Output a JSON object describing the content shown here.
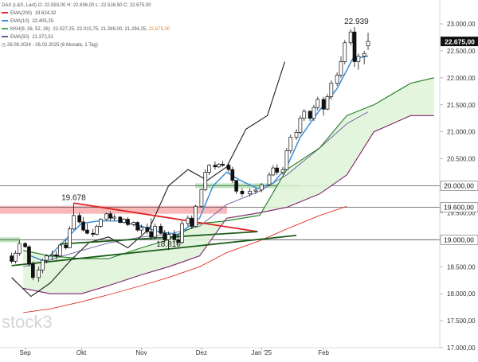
{
  "chart_data": {
    "type": "candlestick",
    "instrument": "DAX (L&S, Last)",
    "header": {
      "open": "22.593,00",
      "high": "22.836,00",
      "low": "22.516,50",
      "close": "22.675,00"
    },
    "period_label": "26.08.2024 - 26.02.2025 (6 Monate, 1 Tag)",
    "watermark": "stock3",
    "current_price_label": "22.675,00",
    "indicators": [
      {
        "name": "EMA(200)",
        "value": "19.624,32",
        "color": "#e0302a"
      },
      {
        "name": "EMA(10)",
        "value": "22.405,25",
        "color": "#3a8fd8"
      },
      {
        "name": "KKH(9, 26, 52, 26)",
        "values": [
          "22.527,25",
          "22.010,75",
          "21.269,00",
          "21.294,25",
          "22.675,00"
        ],
        "color": "#4cae4c"
      },
      {
        "name": "EMA(50)",
        "value": "21.372,51",
        "color": "#6a5aa0"
      }
    ],
    "y_axis": {
      "min": 17000,
      "max": 23000,
      "ticks": [
        17000,
        17500,
        18000,
        18500,
        19000,
        19500,
        20000,
        20500,
        21000,
        21500,
        22000,
        22500,
        23000
      ],
      "tick_labels": [
        "17.000,00",
        "17.500,00",
        "18.000,00",
        "18.500,00",
        "19.000,00",
        "19.500,00",
        "20.000,00",
        "20.500,00",
        "21.000,00",
        "21.500,00",
        "22.000,00",
        "22.500,00",
        "23.000,00"
      ]
    },
    "x_axis": {
      "labels": [
        {
          "label": "Sep",
          "date": "2024-09-02"
        },
        {
          "label": "Okt",
          "date": "2024-10-01"
        },
        {
          "label": "Nov",
          "date": "2024-11-01"
        },
        {
          "label": "Dez",
          "date": "2024-12-02"
        },
        {
          "label": "Jan '25",
          "date": "2025-01-02"
        },
        {
          "label": "Feb",
          "date": "2025-02-03"
        }
      ]
    },
    "horizontal_levels": [
      {
        "value": 20000,
        "label": "20.000,00",
        "zone_color": "#7fd27f"
      },
      {
        "value": 19600,
        "label": "19.600,00",
        "zone_color": "#f08080"
      },
      {
        "value": 19000,
        "label": "19.000,00",
        "zone_color": "#7fd27f"
      }
    ],
    "annotations": [
      {
        "text": "22.939",
        "date": "2025-02-20",
        "value": 22939
      },
      {
        "text": "19.678",
        "date": "2024-09-27",
        "value": 19678
      },
      {
        "text": "18.810",
        "date": "2024-11-15",
        "value": 18810
      }
    ],
    "trendlines": [
      {
        "color": "#e02020",
        "from": {
          "date": "2024-09-27",
          "value": 19680
        },
        "to": {
          "date": "2024-12-31",
          "value": 19150
        }
      },
      {
        "color": "#1c5e1c",
        "from": {
          "date": "2024-08-26",
          "value": 18520
        },
        "to": {
          "date": "2025-01-20",
          "value": 19080
        }
      },
      {
        "color": "#1c5e1c",
        "from": {
          "date": "2024-09-20",
          "value": 18920
        },
        "to": {
          "date": "2024-12-31",
          "value": 19150
        }
      }
    ],
    "series": [
      {
        "name": "EMA(200)",
        "color": "#e0302a",
        "points": [
          [
            "2024-09-01",
            17650
          ],
          [
            "2024-09-15",
            17720
          ],
          [
            "2024-10-01",
            17850
          ],
          [
            "2024-10-15",
            17980
          ],
          [
            "2024-11-01",
            18150
          ],
          [
            "2024-11-15",
            18300
          ],
          [
            "2024-12-01",
            18500
          ],
          [
            "2024-12-15",
            18760
          ],
          [
            "2025-01-01",
            18980
          ],
          [
            "2025-01-15",
            19200
          ],
          [
            "2025-02-01",
            19450
          ],
          [
            "2025-02-15",
            19620
          ]
        ]
      },
      {
        "name": "EMA(50)",
        "color": "#6a5aa0",
        "points": [
          [
            "2024-09-01",
            18500
          ],
          [
            "2024-09-15",
            18630
          ],
          [
            "2024-10-01",
            18800
          ],
          [
            "2024-10-15",
            18940
          ],
          [
            "2024-11-01",
            19050
          ],
          [
            "2024-11-15",
            19100
          ],
          [
            "2024-12-01",
            19250
          ],
          [
            "2024-12-15",
            19650
          ],
          [
            "2025-01-01",
            19900
          ],
          [
            "2025-01-15",
            20200
          ],
          [
            "2025-02-01",
            20700
          ],
          [
            "2025-02-15",
            21150
          ],
          [
            "2025-02-26",
            21370
          ]
        ]
      },
      {
        "name": "EMA(10)",
        "color": "#3a8fd8",
        "points": [
          [
            "2024-09-05",
            18700
          ],
          [
            "2024-09-12",
            18600
          ],
          [
            "2024-09-20",
            18900
          ],
          [
            "2024-10-01",
            19300
          ],
          [
            "2024-10-10",
            19350
          ],
          [
            "2024-10-20",
            19350
          ],
          [
            "2024-11-01",
            19250
          ],
          [
            "2024-11-10",
            19150
          ],
          [
            "2024-11-20",
            19100
          ],
          [
            "2024-12-01",
            19400
          ],
          [
            "2024-12-08",
            20000
          ],
          [
            "2024-12-15",
            20250
          ],
          [
            "2024-12-22",
            20100
          ],
          [
            "2024-12-31",
            19950
          ],
          [
            "2025-01-08",
            20050
          ],
          [
            "2025-01-15",
            20350
          ],
          [
            "2025-01-22",
            20900
          ],
          [
            "2025-02-01",
            21400
          ],
          [
            "2025-02-10",
            21800
          ],
          [
            "2025-02-18",
            22350
          ],
          [
            "2025-02-26",
            22405
          ]
        ]
      },
      {
        "name": "Ichimoku Senkou A",
        "color": "#1c7a1c",
        "points": [
          [
            "2024-09-01",
            18800
          ],
          [
            "2024-09-15",
            18700
          ],
          [
            "2024-10-01",
            18650
          ],
          [
            "2024-10-15",
            18650
          ],
          [
            "2024-11-01",
            18850
          ],
          [
            "2024-11-15",
            19000
          ],
          [
            "2024-12-01",
            19300
          ],
          [
            "2024-12-15",
            19350
          ],
          [
            "2025-01-01",
            19450
          ],
          [
            "2025-01-15",
            20300
          ],
          [
            "2025-02-01",
            20700
          ],
          [
            "2025-02-15",
            21300
          ],
          [
            "2025-03-01",
            21500
          ],
          [
            "2025-03-20",
            21900
          ],
          [
            "2025-04-01",
            22000
          ]
        ]
      },
      {
        "name": "Ichimoku Senkou B",
        "color": "#7b1f6e",
        "points": [
          [
            "2024-09-01",
            18100
          ],
          [
            "2024-09-15",
            18000
          ],
          [
            "2024-10-01",
            18000
          ],
          [
            "2024-10-15",
            18150
          ],
          [
            "2024-11-01",
            18350
          ],
          [
            "2024-11-15",
            18500
          ],
          [
            "2024-12-01",
            18700
          ],
          [
            "2024-12-15",
            19400
          ],
          [
            "2025-01-01",
            19500
          ],
          [
            "2025-01-15",
            19600
          ],
          [
            "2025-02-01",
            19850
          ],
          [
            "2025-02-15",
            20200
          ],
          [
            "2025-03-01",
            21000
          ],
          [
            "2025-03-20",
            21300
          ],
          [
            "2025-04-01",
            21300
          ]
        ]
      },
      {
        "name": "Lagging Span",
        "color": "#1a1a1a",
        "points": [
          [
            "2024-08-26",
            18300
          ],
          [
            "2024-09-05",
            17950
          ],
          [
            "2024-09-15",
            18200
          ],
          [
            "2024-09-25",
            18600
          ],
          [
            "2024-10-05",
            18950
          ],
          [
            "2024-10-15",
            19050
          ],
          [
            "2024-10-25",
            18850
          ],
          [
            "2024-11-05",
            19200
          ],
          [
            "2024-11-15",
            20000
          ],
          [
            "2024-11-25",
            20300
          ],
          [
            "2024-12-05",
            20100
          ],
          [
            "2024-12-15",
            20350
          ],
          [
            "2024-12-25",
            21050
          ],
          [
            "2025-01-05",
            21300
          ],
          [
            "2025-01-14",
            22300
          ]
        ]
      }
    ],
    "candles": [
      {
        "d": "2024-08-26",
        "o": 18700,
        "h": 18760,
        "l": 18560,
        "c": 18600
      },
      {
        "d": "2024-08-28",
        "o": 18600,
        "h": 18800,
        "l": 18560,
        "c": 18750
      },
      {
        "d": "2024-08-30",
        "o": 18750,
        "h": 18990,
        "l": 18700,
        "c": 18930
      },
      {
        "d": "2024-09-02",
        "o": 18930,
        "h": 18960,
        "l": 18850,
        "c": 18870
      },
      {
        "d": "2024-09-04",
        "o": 18870,
        "h": 18900,
        "l": 18500,
        "c": 18550
      },
      {
        "d": "2024-09-06",
        "o": 18550,
        "h": 18600,
        "l": 18250,
        "c": 18300
      },
      {
        "d": "2024-09-09",
        "o": 18300,
        "h": 18500,
        "l": 18220,
        "c": 18440
      },
      {
        "d": "2024-09-11",
        "o": 18440,
        "h": 18650,
        "l": 18380,
        "c": 18620
      },
      {
        "d": "2024-09-13",
        "o": 18620,
        "h": 18730,
        "l": 18560,
        "c": 18700
      },
      {
        "d": "2024-09-16",
        "o": 18700,
        "h": 18800,
        "l": 18620,
        "c": 18720
      },
      {
        "d": "2024-09-18",
        "o": 18720,
        "h": 18790,
        "l": 18640,
        "c": 18700
      },
      {
        "d": "2024-09-20",
        "o": 18700,
        "h": 18930,
        "l": 18680,
        "c": 18900
      },
      {
        "d": "2024-09-23",
        "o": 18900,
        "h": 19000,
        "l": 18820,
        "c": 18850
      },
      {
        "d": "2024-09-25",
        "o": 18850,
        "h": 19250,
        "l": 18840,
        "c": 19200
      },
      {
        "d": "2024-09-27",
        "o": 19200,
        "h": 19678,
        "l": 19180,
        "c": 19450
      },
      {
        "d": "2024-09-30",
        "o": 19450,
        "h": 19500,
        "l": 19300,
        "c": 19330
      },
      {
        "d": "2024-10-02",
        "o": 19330,
        "h": 19420,
        "l": 19150,
        "c": 19180
      },
      {
        "d": "2024-10-04",
        "o": 19180,
        "h": 19300,
        "l": 19100,
        "c": 19120
      },
      {
        "d": "2024-10-07",
        "o": 19120,
        "h": 19200,
        "l": 19050,
        "c": 19100
      },
      {
        "d": "2024-10-09",
        "o": 19100,
        "h": 19280,
        "l": 19080,
        "c": 19250
      },
      {
        "d": "2024-10-11",
        "o": 19250,
        "h": 19400,
        "l": 19220,
        "c": 19380
      },
      {
        "d": "2024-10-14",
        "o": 19380,
        "h": 19500,
        "l": 19350,
        "c": 19480
      },
      {
        "d": "2024-10-16",
        "o": 19480,
        "h": 19520,
        "l": 19350,
        "c": 19400
      },
      {
        "d": "2024-10-18",
        "o": 19400,
        "h": 19470,
        "l": 19350,
        "c": 19420
      },
      {
        "d": "2024-10-21",
        "o": 19420,
        "h": 19440,
        "l": 19300,
        "c": 19320
      },
      {
        "d": "2024-10-23",
        "o": 19320,
        "h": 19400,
        "l": 19300,
        "c": 19380
      },
      {
        "d": "2024-10-25",
        "o": 19380,
        "h": 19420,
        "l": 19250,
        "c": 19280
      },
      {
        "d": "2024-10-28",
        "o": 19280,
        "h": 19340,
        "l": 19250,
        "c": 19320
      },
      {
        "d": "2024-10-30",
        "o": 19320,
        "h": 19340,
        "l": 19150,
        "c": 19180
      },
      {
        "d": "2024-11-01",
        "o": 19180,
        "h": 19280,
        "l": 19100,
        "c": 19230
      },
      {
        "d": "2024-11-04",
        "o": 19230,
        "h": 19300,
        "l": 19100,
        "c": 19150
      },
      {
        "d": "2024-11-06",
        "o": 19150,
        "h": 19400,
        "l": 19000,
        "c": 19050
      },
      {
        "d": "2024-11-08",
        "o": 19050,
        "h": 19300,
        "l": 19000,
        "c": 19250
      },
      {
        "d": "2024-11-11",
        "o": 19250,
        "h": 19300,
        "l": 19100,
        "c": 19120
      },
      {
        "d": "2024-11-13",
        "o": 19120,
        "h": 19180,
        "l": 18950,
        "c": 19000
      },
      {
        "d": "2024-11-15",
        "o": 19000,
        "h": 19150,
        "l": 18810,
        "c": 19100
      },
      {
        "d": "2024-11-18",
        "o": 19100,
        "h": 19180,
        "l": 18950,
        "c": 19000
      },
      {
        "d": "2024-11-20",
        "o": 19000,
        "h": 19100,
        "l": 18900,
        "c": 18950
      },
      {
        "d": "2024-11-22",
        "o": 18950,
        "h": 19350,
        "l": 18920,
        "c": 19300
      },
      {
        "d": "2024-11-25",
        "o": 19300,
        "h": 19450,
        "l": 19250,
        "c": 19400
      },
      {
        "d": "2024-11-27",
        "o": 19400,
        "h": 19450,
        "l": 19200,
        "c": 19250
      },
      {
        "d": "2024-11-29",
        "o": 19250,
        "h": 19650,
        "l": 19240,
        "c": 19620
      },
      {
        "d": "2024-12-02",
        "o": 19620,
        "h": 19950,
        "l": 19600,
        "c": 19930
      },
      {
        "d": "2024-12-04",
        "o": 19930,
        "h": 20300,
        "l": 19900,
        "c": 20250
      },
      {
        "d": "2024-12-06",
        "o": 20250,
        "h": 20400,
        "l": 20200,
        "c": 20380
      },
      {
        "d": "2024-12-09",
        "o": 20380,
        "h": 20450,
        "l": 20300,
        "c": 20350
      },
      {
        "d": "2024-12-11",
        "o": 20350,
        "h": 20420,
        "l": 20330,
        "c": 20400
      },
      {
        "d": "2024-12-13",
        "o": 20400,
        "h": 20460,
        "l": 20350,
        "c": 20380
      },
      {
        "d": "2024-12-16",
        "o": 20380,
        "h": 20420,
        "l": 20250,
        "c": 20300
      },
      {
        "d": "2024-12-18",
        "o": 20300,
        "h": 20350,
        "l": 20050,
        "c": 20100
      },
      {
        "d": "2024-12-20",
        "o": 20100,
        "h": 20100,
        "l": 19850,
        "c": 19900
      },
      {
        "d": "2024-12-23",
        "o": 19900,
        "h": 19950,
        "l": 19800,
        "c": 19850
      },
      {
        "d": "2024-12-27",
        "o": 19850,
        "h": 19950,
        "l": 19800,
        "c": 19900
      },
      {
        "d": "2024-12-30",
        "o": 19900,
        "h": 19950,
        "l": 19850,
        "c": 19920
      },
      {
        "d": "2025-01-02",
        "o": 19920,
        "h": 20050,
        "l": 19880,
        "c": 20020
      },
      {
        "d": "2025-01-06",
        "o": 20020,
        "h": 20250,
        "l": 20000,
        "c": 20200
      },
      {
        "d": "2025-01-08",
        "o": 20200,
        "h": 20380,
        "l": 20180,
        "c": 20330
      },
      {
        "d": "2025-01-10",
        "o": 20330,
        "h": 20400,
        "l": 20200,
        "c": 20250
      },
      {
        "d": "2025-01-13",
        "o": 20250,
        "h": 20350,
        "l": 20200,
        "c": 20300
      },
      {
        "d": "2025-01-15",
        "o": 20300,
        "h": 20700,
        "l": 20280,
        "c": 20650
      },
      {
        "d": "2025-01-17",
        "o": 20650,
        "h": 20950,
        "l": 20600,
        "c": 20900
      },
      {
        "d": "2025-01-20",
        "o": 20900,
        "h": 21050,
        "l": 20850,
        "c": 20990
      },
      {
        "d": "2025-01-22",
        "o": 20990,
        "h": 21300,
        "l": 20950,
        "c": 21250
      },
      {
        "d": "2025-01-24",
        "o": 21250,
        "h": 21420,
        "l": 21200,
        "c": 21380
      },
      {
        "d": "2025-01-27",
        "o": 21380,
        "h": 21400,
        "l": 21200,
        "c": 21250
      },
      {
        "d": "2025-01-29",
        "o": 21250,
        "h": 21500,
        "l": 21200,
        "c": 21450
      },
      {
        "d": "2025-01-31",
        "o": 21450,
        "h": 21650,
        "l": 21400,
        "c": 21600
      },
      {
        "d": "2025-02-03",
        "o": 21600,
        "h": 21650,
        "l": 21300,
        "c": 21420
      },
      {
        "d": "2025-02-05",
        "o": 21420,
        "h": 21700,
        "l": 21400,
        "c": 21650
      },
      {
        "d": "2025-02-07",
        "o": 21650,
        "h": 21950,
        "l": 21600,
        "c": 21900
      },
      {
        "d": "2025-02-10",
        "o": 21900,
        "h": 22100,
        "l": 21850,
        "c": 22050
      },
      {
        "d": "2025-02-12",
        "o": 22050,
        "h": 22400,
        "l": 22000,
        "c": 22300
      },
      {
        "d": "2025-02-14",
        "o": 22300,
        "h": 22700,
        "l": 22250,
        "c": 22650
      },
      {
        "d": "2025-02-17",
        "o": 22650,
        "h": 22900,
        "l": 22600,
        "c": 22850
      },
      {
        "d": "2025-02-19",
        "o": 22850,
        "h": 22939,
        "l": 22200,
        "c": 22300
      },
      {
        "d": "2025-02-21",
        "o": 22300,
        "h": 22450,
        "l": 22150,
        "c": 22400
      },
      {
        "d": "2025-02-24",
        "o": 22400,
        "h": 22500,
        "l": 22250,
        "c": 22450
      },
      {
        "d": "2025-02-26",
        "o": 22593,
        "h": 22836,
        "l": 22516,
        "c": 22675
      }
    ]
  }
}
